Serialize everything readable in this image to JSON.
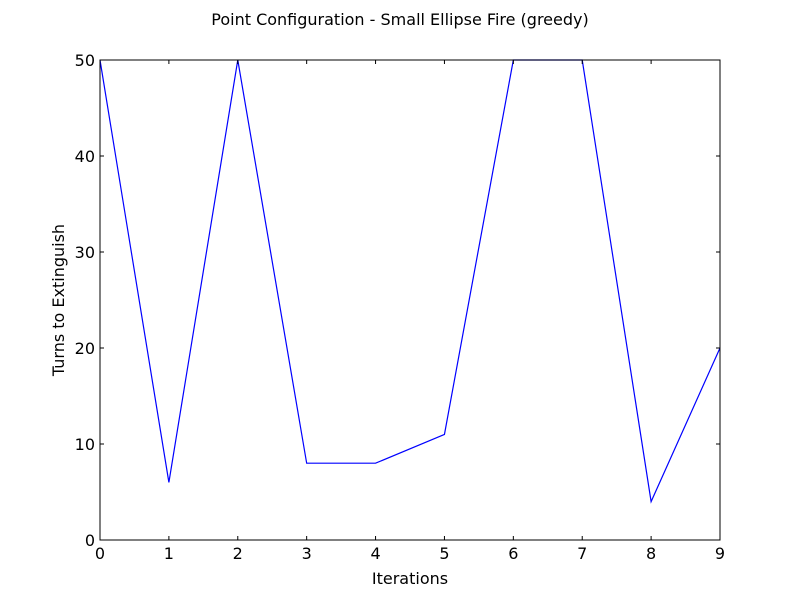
{
  "chart_data": {
    "type": "line",
    "title": "Point Configuration - Small Ellipse Fire (greedy)",
    "xlabel": "Iterations",
    "ylabel": "Turns to Extinguish",
    "xlim": [
      0,
      9
    ],
    "ylim": [
      0,
      50
    ],
    "xticks": [
      0,
      1,
      2,
      3,
      4,
      5,
      6,
      7,
      8,
      9
    ],
    "yticks": [
      0,
      10,
      20,
      30,
      40,
      50
    ],
    "grid": false,
    "series": [
      {
        "color": "#0000ff",
        "x": [
          0,
          1,
          2,
          3,
          4,
          5,
          6,
          7,
          8,
          9
        ],
        "y": [
          50,
          6,
          50,
          8,
          8,
          11,
          50,
          50,
          4,
          20
        ]
      }
    ]
  }
}
